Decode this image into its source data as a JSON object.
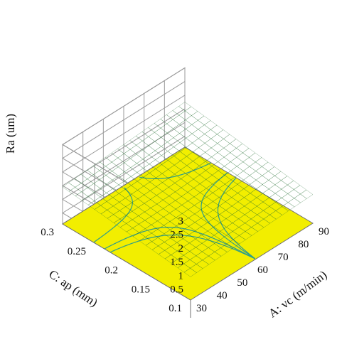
{
  "chart_data": {
    "type": "surface3d",
    "title": "",
    "zlabel": "Ra (um)",
    "xlabel": "A: vc (m/min)",
    "ylabel": "C: ap (mm)",
    "z_ticks": [
      "0.5",
      "1",
      "1.5",
      "2",
      "2.5",
      "3"
    ],
    "x_ticks": [
      "30",
      "40",
      "50",
      "60",
      "70",
      "80",
      "90"
    ],
    "y_ticks": [
      "0.1",
      "0.15",
      "0.2",
      "0.25",
      "0.3"
    ],
    "zlim": [
      0.5,
      3
    ],
    "xlim": [
      30,
      90
    ],
    "ylim": [
      0.1,
      0.3
    ],
    "surface_corners": [
      {
        "vc": 30,
        "ap": 0.3,
        "Ra": 1.45
      },
      {
        "vc": 30,
        "ap": 0.1,
        "Ra": 0.95
      },
      {
        "vc": 90,
        "ap": 0.1,
        "Ra": 1.15
      },
      {
        "vc": 90,
        "ap": 0.3,
        "Ra": 1.75
      }
    ],
    "surface_color": "#3f9a45",
    "floor_color": "#f2ee00",
    "contour_color": "#2e9e8a",
    "grid": true
  }
}
